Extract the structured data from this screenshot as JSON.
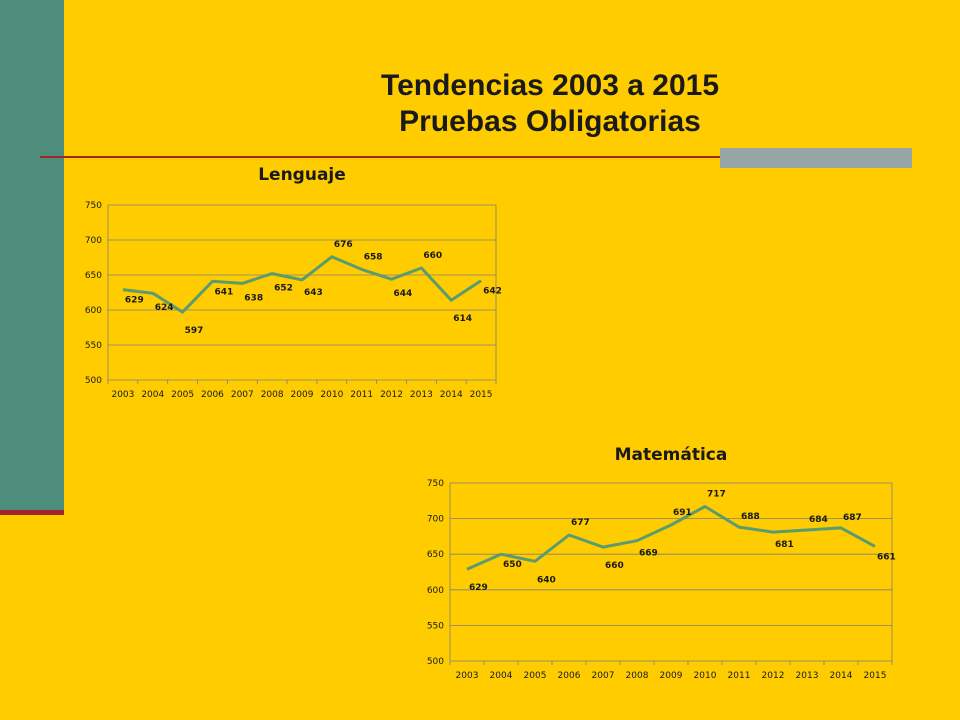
{
  "slide": {
    "title_line1": "Tendencias 2003 a 2015",
    "title_line2": "Pruebas Obligatorias"
  },
  "colors": {
    "background": "#FFCC00",
    "sidebar": "#4E8C7B",
    "rule": "#A0282C",
    "line": "#5B9C6E"
  },
  "chart_data": [
    {
      "type": "line",
      "title": "Lenguaje",
      "categories": [
        "2003",
        "2004",
        "2005",
        "2006",
        "2007",
        "2008",
        "2009",
        "2010",
        "2011",
        "2012",
        "2013",
        "2014",
        "2015"
      ],
      "series": [
        {
          "values": [
            629,
            624,
            597,
            641,
            638,
            652,
            643,
            676,
            658,
            644,
            660,
            614,
            642
          ]
        }
      ],
      "ylim": [
        500,
        750
      ],
      "yticks": [
        500,
        550,
        600,
        650,
        700,
        750
      ],
      "grid": true,
      "legend": "none"
    },
    {
      "type": "line",
      "title": "Matemática",
      "categories": [
        "2003",
        "2004",
        "2005",
        "2006",
        "2007",
        "2008",
        "2009",
        "2010",
        "2011",
        "2012",
        "2013",
        "2014",
        "2015"
      ],
      "series": [
        {
          "values": [
            629,
            650,
            640,
            677,
            660,
            669,
            691,
            717,
            688,
            681,
            684,
            687,
            661
          ]
        }
      ],
      "ylim": [
        500,
        750
      ],
      "yticks": [
        500,
        550,
        600,
        650,
        700,
        750
      ],
      "grid": true,
      "legend": "none"
    }
  ]
}
